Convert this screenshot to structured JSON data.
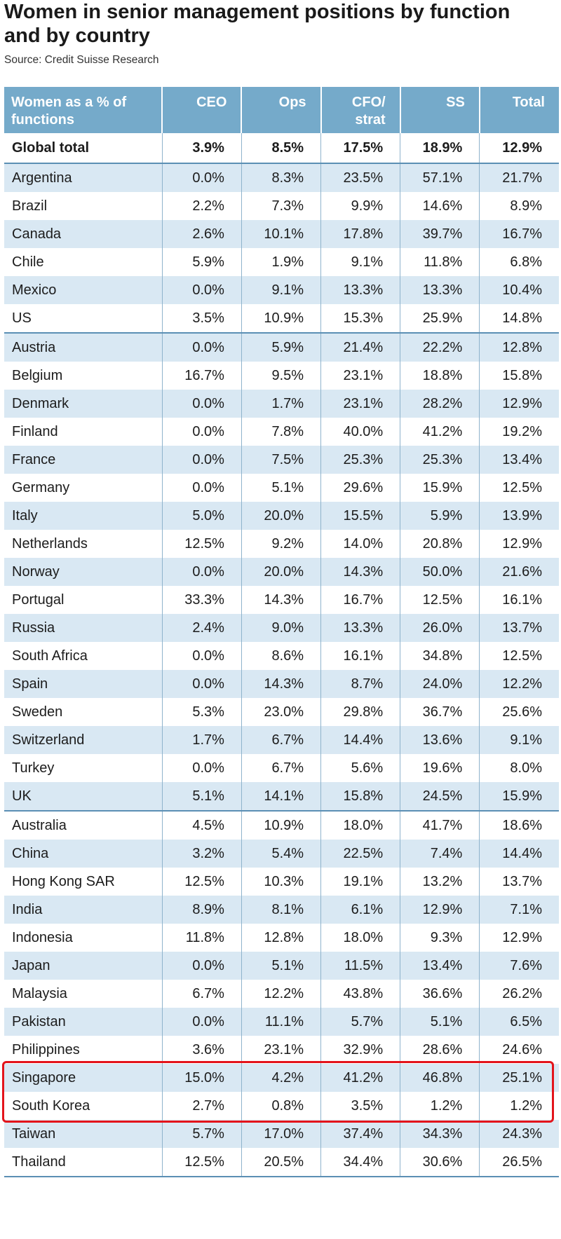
{
  "title": "Women in senior management positions by function and by country",
  "source": "Source: Credit Suisse Research",
  "chart_data": {
    "type": "table",
    "title": "Women in senior management positions by function and by country",
    "columns": [
      "Women as a % of functions",
      "CEO",
      "Ops",
      "CFO/ strat",
      "SS",
      "Total"
    ],
    "global_total": {
      "label": "Global total",
      "values": [
        "3.9%",
        "8.5%",
        "17.5%",
        "18.9%",
        "12.9%"
      ]
    },
    "groups": [
      [
        {
          "country": "Argentina",
          "values": [
            "0.0%",
            "8.3%",
            "23.5%",
            "57.1%",
            "21.7%"
          ]
        },
        {
          "country": "Brazil",
          "values": [
            "2.2%",
            "7.3%",
            "9.9%",
            "14.6%",
            "8.9%"
          ]
        },
        {
          "country": "Canada",
          "values": [
            "2.6%",
            "10.1%",
            "17.8%",
            "39.7%",
            "16.7%"
          ]
        },
        {
          "country": "Chile",
          "values": [
            "5.9%",
            "1.9%",
            "9.1%",
            "11.8%",
            "6.8%"
          ]
        },
        {
          "country": "Mexico",
          "values": [
            "0.0%",
            "9.1%",
            "13.3%",
            "13.3%",
            "10.4%"
          ]
        },
        {
          "country": "US",
          "values": [
            "3.5%",
            "10.9%",
            "15.3%",
            "25.9%",
            "14.8%"
          ]
        }
      ],
      [
        {
          "country": "Austria",
          "values": [
            "0.0%",
            "5.9%",
            "21.4%",
            "22.2%",
            "12.8%"
          ]
        },
        {
          "country": "Belgium",
          "values": [
            "16.7%",
            "9.5%",
            "23.1%",
            "18.8%",
            "15.8%"
          ]
        },
        {
          "country": "Denmark",
          "values": [
            "0.0%",
            "1.7%",
            "23.1%",
            "28.2%",
            "12.9%"
          ]
        },
        {
          "country": "Finland",
          "values": [
            "0.0%",
            "7.8%",
            "40.0%",
            "41.2%",
            "19.2%"
          ]
        },
        {
          "country": "France",
          "values": [
            "0.0%",
            "7.5%",
            "25.3%",
            "25.3%",
            "13.4%"
          ]
        },
        {
          "country": "Germany",
          "values": [
            "0.0%",
            "5.1%",
            "29.6%",
            "15.9%",
            "12.5%"
          ]
        },
        {
          "country": "Italy",
          "values": [
            "5.0%",
            "20.0%",
            "15.5%",
            "5.9%",
            "13.9%"
          ]
        },
        {
          "country": "Netherlands",
          "values": [
            "12.5%",
            "9.2%",
            "14.0%",
            "20.8%",
            "12.9%"
          ]
        },
        {
          "country": "Norway",
          "values": [
            "0.0%",
            "20.0%",
            "14.3%",
            "50.0%",
            "21.6%"
          ]
        },
        {
          "country": "Portugal",
          "values": [
            "33.3%",
            "14.3%",
            "16.7%",
            "12.5%",
            "16.1%"
          ]
        },
        {
          "country": "Russia",
          "values": [
            "2.4%",
            "9.0%",
            "13.3%",
            "26.0%",
            "13.7%"
          ]
        },
        {
          "country": "South Africa",
          "values": [
            "0.0%",
            "8.6%",
            "16.1%",
            "34.8%",
            "12.5%"
          ]
        },
        {
          "country": "Spain",
          "values": [
            "0.0%",
            "14.3%",
            "8.7%",
            "24.0%",
            "12.2%"
          ]
        },
        {
          "country": "Sweden",
          "values": [
            "5.3%",
            "23.0%",
            "29.8%",
            "36.7%",
            "25.6%"
          ]
        },
        {
          "country": "Switzerland",
          "values": [
            "1.7%",
            "6.7%",
            "14.4%",
            "13.6%",
            "9.1%"
          ]
        },
        {
          "country": "Turkey",
          "values": [
            "0.0%",
            "6.7%",
            "5.6%",
            "19.6%",
            "8.0%"
          ]
        },
        {
          "country": "UK",
          "values": [
            "5.1%",
            "14.1%",
            "15.8%",
            "24.5%",
            "15.9%"
          ]
        }
      ],
      [
        {
          "country": "Australia",
          "values": [
            "4.5%",
            "10.9%",
            "18.0%",
            "41.7%",
            "18.6%"
          ]
        },
        {
          "country": "China",
          "values": [
            "3.2%",
            "5.4%",
            "22.5%",
            "7.4%",
            "14.4%"
          ]
        },
        {
          "country": "Hong Kong SAR",
          "values": [
            "12.5%",
            "10.3%",
            "19.1%",
            "13.2%",
            "13.7%"
          ]
        },
        {
          "country": "India",
          "values": [
            "8.9%",
            "8.1%",
            "6.1%",
            "12.9%",
            "7.1%"
          ]
        },
        {
          "country": "Indonesia",
          "values": [
            "11.8%",
            "12.8%",
            "18.0%",
            "9.3%",
            "12.9%"
          ]
        },
        {
          "country": "Japan",
          "values": [
            "0.0%",
            "5.1%",
            "11.5%",
            "13.4%",
            "7.6%"
          ]
        },
        {
          "country": "Malaysia",
          "values": [
            "6.7%",
            "12.2%",
            "43.8%",
            "36.6%",
            "26.2%"
          ]
        },
        {
          "country": "Pakistan",
          "values": [
            "0.0%",
            "11.1%",
            "5.7%",
            "5.1%",
            "6.5%"
          ]
        },
        {
          "country": "Philippines",
          "values": [
            "3.6%",
            "23.1%",
            "32.9%",
            "28.6%",
            "24.6%"
          ]
        },
        {
          "country": "Singapore",
          "values": [
            "15.0%",
            "4.2%",
            "41.2%",
            "46.8%",
            "25.1%"
          ]
        },
        {
          "country": "South Korea",
          "values": [
            "2.7%",
            "0.8%",
            "3.5%",
            "1.2%",
            "1.2%"
          ]
        },
        {
          "country": "Taiwan",
          "values": [
            "5.7%",
            "17.0%",
            "37.4%",
            "34.3%",
            "24.3%"
          ]
        },
        {
          "country": "Thailand",
          "values": [
            "12.5%",
            "20.5%",
            "34.4%",
            "30.6%",
            "26.5%"
          ]
        }
      ]
    ],
    "highlighted_rows": [
      "Singapore",
      "South Korea"
    ],
    "colors": {
      "header": "#75aaca",
      "stripe": "#d9e8f3",
      "rule": "#5b8fb4",
      "highlight": "#e3141b"
    }
  }
}
